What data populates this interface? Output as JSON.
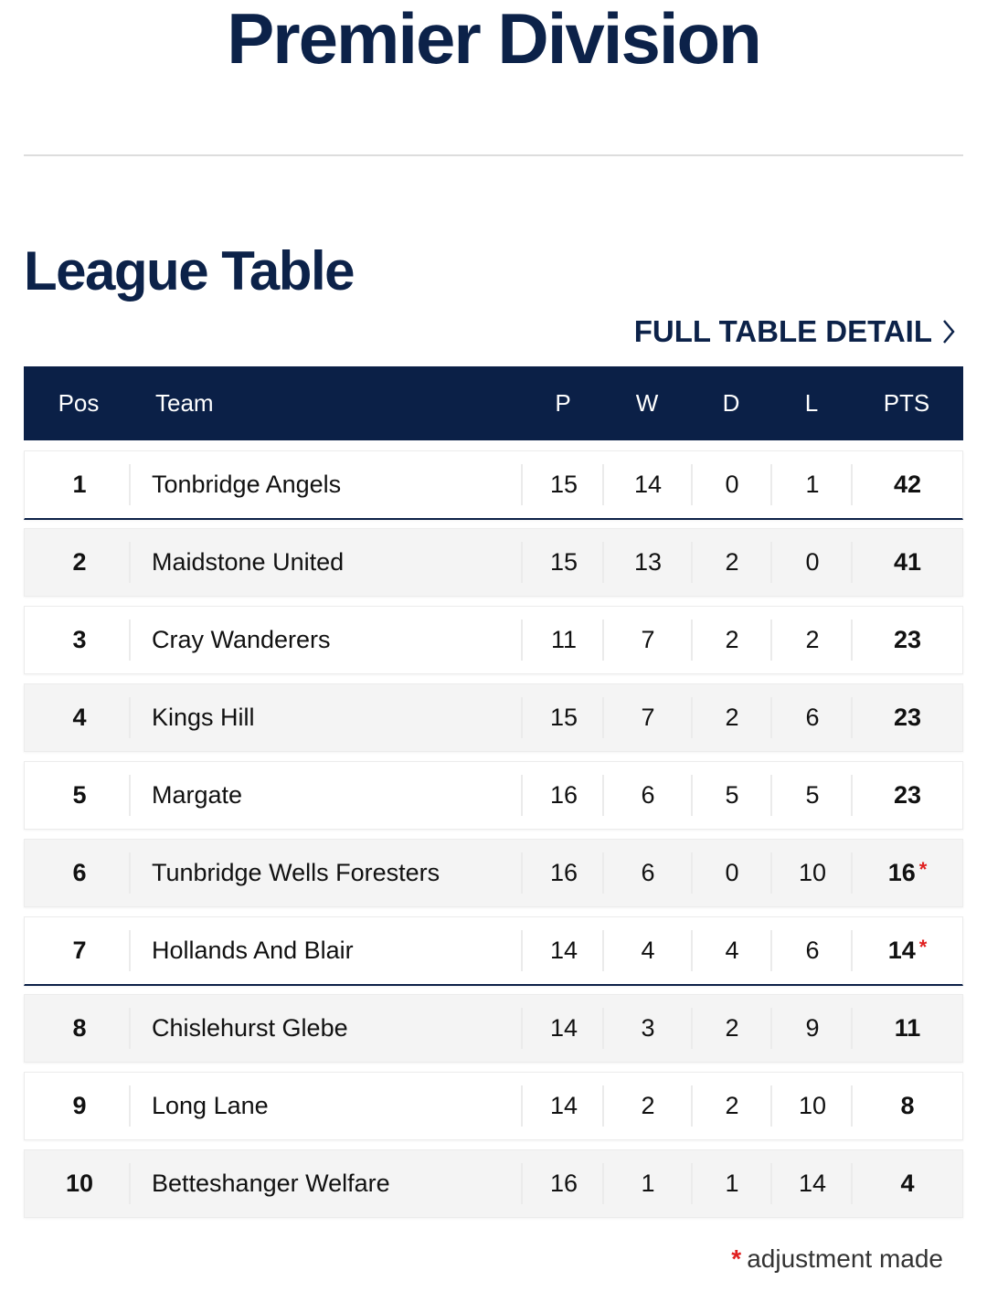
{
  "page_title": "Premier Division",
  "section_title": "League Table",
  "full_table_link": "FULL TABLE DETAIL",
  "colors": {
    "navy": "#0b2047",
    "adjustment": "#e02020"
  },
  "table": {
    "headers": {
      "pos": "Pos",
      "team": "Team",
      "p": "P",
      "w": "W",
      "d": "D",
      "l": "L",
      "pts": "PTS"
    },
    "rows": [
      {
        "pos": "1",
        "team": "Tonbridge Angels",
        "p": "15",
        "w": "14",
        "d": "0",
        "l": "1",
        "pts": "42",
        "adj": ""
      },
      {
        "pos": "2",
        "team": "Maidstone United",
        "p": "15",
        "w": "13",
        "d": "2",
        "l": "0",
        "pts": "41",
        "adj": ""
      },
      {
        "pos": "3",
        "team": "Cray Wanderers",
        "p": "11",
        "w": "7",
        "d": "2",
        "l": "2",
        "pts": "23",
        "adj": ""
      },
      {
        "pos": "4",
        "team": "Kings Hill",
        "p": "15",
        "w": "7",
        "d": "2",
        "l": "6",
        "pts": "23",
        "adj": ""
      },
      {
        "pos": "5",
        "team": "Margate",
        "p": "16",
        "w": "6",
        "d": "5",
        "l": "5",
        "pts": "23",
        "adj": ""
      },
      {
        "pos": "6",
        "team": "Tunbridge Wells Foresters",
        "p": "16",
        "w": "6",
        "d": "0",
        "l": "10",
        "pts": "16",
        "adj": "*"
      },
      {
        "pos": "7",
        "team": "Hollands And Blair",
        "p": "14",
        "w": "4",
        "d": "4",
        "l": "6",
        "pts": "14",
        "adj": "*"
      },
      {
        "pos": "8",
        "team": "Chislehurst Glebe",
        "p": "14",
        "w": "3",
        "d": "2",
        "l": "9",
        "pts": "11",
        "adj": ""
      },
      {
        "pos": "9",
        "team": "Long Lane",
        "p": "14",
        "w": "2",
        "d": "2",
        "l": "10",
        "pts": "8",
        "adj": ""
      },
      {
        "pos": "10",
        "team": "Betteshanger Welfare",
        "p": "16",
        "w": "1",
        "d": "1",
        "l": "14",
        "pts": "4",
        "adj": ""
      }
    ]
  },
  "footnote": {
    "marker": "*",
    "text": "adjustment made"
  }
}
